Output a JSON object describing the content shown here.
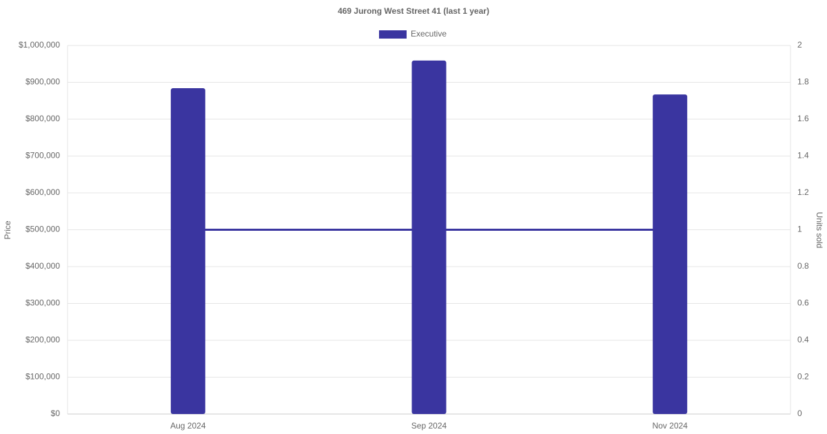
{
  "chart_data": {
    "type": "bar",
    "title": "469 Jurong West Street 41 (last 1 year)",
    "categories": [
      "Aug 2024",
      "Sep 2024",
      "Nov 2024"
    ],
    "series": [
      {
        "name": "Executive",
        "color": "#3a35a0",
        "values": [
          884000,
          959000,
          867000
        ]
      },
      {
        "type": "line",
        "axis": "y2",
        "color": "#3a35a0",
        "values": [
          1,
          1,
          1
        ]
      }
    ],
    "y_label": "Price",
    "y2_label": "Units sold",
    "ylim": [
      0,
      1000000
    ],
    "yticks": [
      {
        "value": 0,
        "label": "$0"
      },
      {
        "value": 100000,
        "label": "$100,000"
      },
      {
        "value": 200000,
        "label": "$200,000"
      },
      {
        "value": 300000,
        "label": "$300,000"
      },
      {
        "value": 400000,
        "label": "$400,000"
      },
      {
        "value": 500000,
        "label": "$500,000"
      },
      {
        "value": 600000,
        "label": "$600,000"
      },
      {
        "value": 700000,
        "label": "$700,000"
      },
      {
        "value": 800000,
        "label": "$800,000"
      },
      {
        "value": 900000,
        "label": "$900,000"
      },
      {
        "value": 1000000,
        "label": "$1,000,000"
      }
    ],
    "y2lim": [
      0,
      2
    ],
    "y2ticks": [
      0,
      0.2,
      0.4,
      0.6,
      0.8,
      1,
      1.2,
      1.4,
      1.6,
      1.8,
      2
    ],
    "grid": true,
    "legend": "top"
  }
}
